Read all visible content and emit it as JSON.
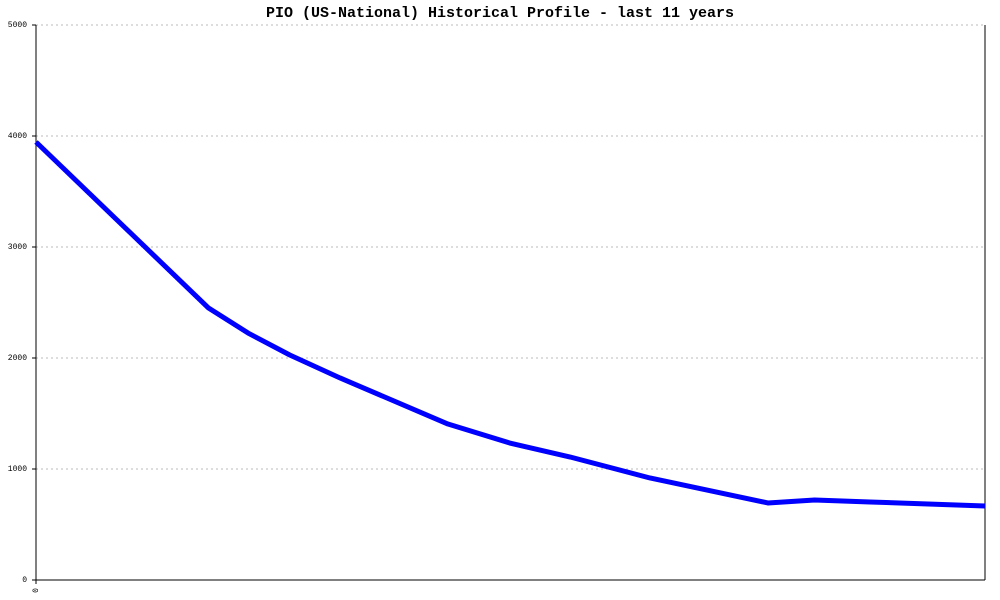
{
  "chart_data": {
    "type": "line",
    "title": "PIO (US-National) Historical Profile - last 11 years",
    "x": [
      0,
      24,
      29.5,
      35.3,
      42.3,
      57.3,
      65.9,
      74.3,
      85.4,
      101.8,
      108.3,
      116,
      132
    ],
    "series": [
      {
        "color": "#0000ff",
        "values": [
          3946,
          2450,
          2225,
          2027,
          1820,
          1405,
          1234,
          1108,
          919,
          694,
          721,
          703,
          667
        ]
      }
    ],
    "xlim": [
      0,
      132
    ],
    "xticks": [
      0
    ],
    "ylim": [
      0,
      5000
    ],
    "yticks": [
      0,
      1000,
      2000,
      3000,
      4000,
      5000
    ],
    "grid": true
  }
}
